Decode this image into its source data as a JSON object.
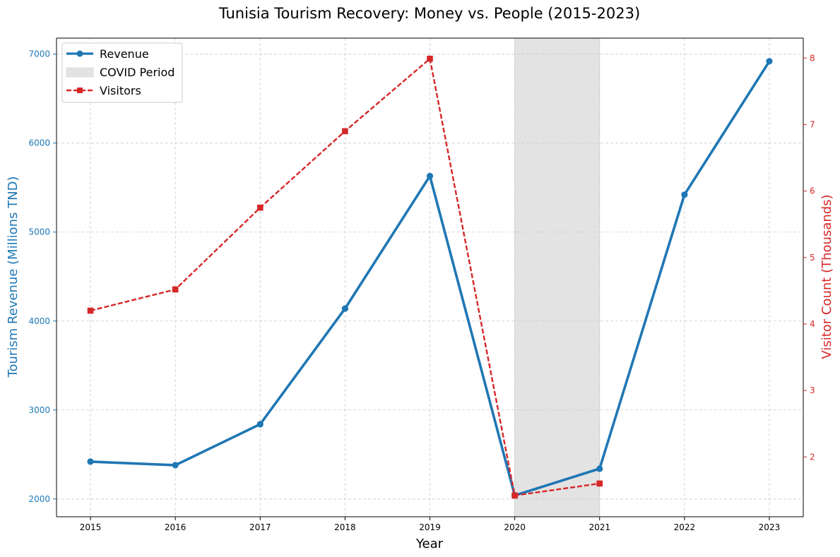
{
  "chart_data": {
    "type": "line",
    "title": "Tunisia Tourism Recovery: Money vs. People (2015-2023)",
    "xlabel": "Year",
    "ylabel_left": "Tourism Revenue (Millions TND)",
    "ylabel_right": "Visitor Count (Thousands)",
    "x": [
      2015,
      2016,
      2017,
      2018,
      2019,
      2020,
      2021,
      2022,
      2023
    ],
    "xlim": [
      2014.6,
      2023.4
    ],
    "ylim_left": [
      1800,
      7180
    ],
    "ylim_right": [
      1.1,
      8.3
    ],
    "yticks_left": [
      2000,
      3000,
      4000,
      5000,
      6000,
      7000
    ],
    "yticks_right": [
      2,
      3,
      4,
      5,
      6,
      7,
      8
    ],
    "grid": true,
    "legend_position": "top-left",
    "shaded_region": {
      "label": "COVID Period",
      "x_start": 2020,
      "x_end": 2021,
      "color": "#e3e3e3"
    },
    "series": [
      {
        "name": "Revenue",
        "axis": "left",
        "color": "#1f77b4",
        "style": "solid",
        "marker": "circle",
        "x": [
          2015,
          2016,
          2017,
          2018,
          2019,
          2020,
          2021,
          2022,
          2023
        ],
        "values": [
          2420,
          2380,
          2840,
          4140,
          5630,
          2040,
          2340,
          5420,
          6920
        ]
      },
      {
        "name": "Visitors",
        "axis": "right",
        "color": "#d62728",
        "style": "dashed",
        "marker": "square",
        "x": [
          2015,
          2016,
          2017,
          2018,
          2019,
          2020,
          2021
        ],
        "values": [
          4.2,
          4.52,
          5.75,
          6.9,
          7.99,
          1.42,
          1.6
        ]
      }
    ]
  }
}
